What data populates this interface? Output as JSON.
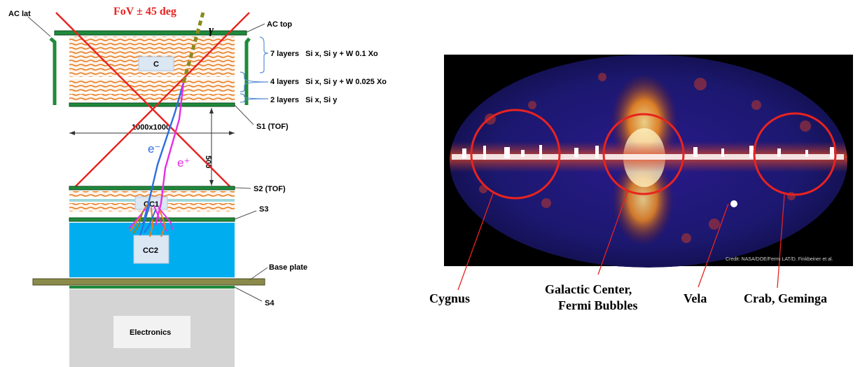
{
  "detector": {
    "fov_label": "FoV  ± 45 deg",
    "ac_lat": "AC lat",
    "ac_top": "AC top",
    "layer_groups": [
      {
        "label": "7 layers   Si x, Si y + W 0.1 Xo"
      },
      {
        "label": "4 layers   Si x, Si y + W 0.025 Xo"
      },
      {
        "label": "2 layers   Si x, Si y"
      }
    ],
    "converter_label": "C",
    "gamma_label": "γ",
    "s1_label": "S1 (TOF)",
    "size_label": "1000x1000",
    "distance_label": "500",
    "electron_label": "e⁻",
    "positron_label": "e⁺",
    "s2_label": "S2 (TOF)",
    "cc1_label": "CC1",
    "s3_label": "S3",
    "cc2_label": "CC2",
    "base_plate_label": "Base plate",
    "s4_label": "S4",
    "electronics_label": "Electronics",
    "colors": {
      "fov_lines": "#e8231f",
      "green_plates": "#1f8a3a",
      "layers": "#e67e22",
      "calorimeter": "#00aeef",
      "electron_track": "#2e6de0",
      "positron_track": "#e62ee6",
      "gamma_track": "#8a8a1e"
    }
  },
  "sky_map": {
    "credit": "Credit: NASA/DOE/Fermi LAT/D. Finkbeiner et al.",
    "regions": [
      {
        "label": "Cygnus"
      },
      {
        "label": "Galactic Center,"
      },
      {
        "label": "Fermi Bubbles"
      },
      {
        "label": "Vela"
      },
      {
        "label": "Crab, Geminga"
      }
    ],
    "circle_color": "#e8231f"
  }
}
